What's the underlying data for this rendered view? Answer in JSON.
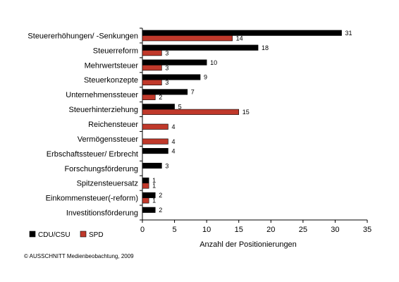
{
  "chart_data": {
    "type": "bar",
    "orientation": "horizontal",
    "categories": [
      "Steuererhöhungen/ -Senkungen",
      "Steuerreform",
      "Mehrwertsteuer",
      "Steuerkonzepte",
      "Unternehmenssteuer",
      "Steuerhinterziehung",
      "Reichensteuer",
      "Vermögenssteuer",
      "Erbschaftssteuer/ Erbrecht",
      "Forschungsförderung",
      "Spitzensteuersatz",
      "Einkommensteuer(-reform)",
      "Investitionsförderung"
    ],
    "series": [
      {
        "name": "CDU/CSU",
        "color": "#000000",
        "values": [
          31,
          18,
          10,
          9,
          7,
          5,
          null,
          null,
          4,
          3,
          1,
          2,
          2
        ]
      },
      {
        "name": "SPD",
        "color": "#c0392b",
        "values": [
          14,
          3,
          3,
          3,
          2,
          15,
          4,
          4,
          null,
          null,
          1,
          1,
          null
        ]
      }
    ],
    "xlabel": "Anzahl der Positionierungen",
    "xlim": [
      0,
      35
    ],
    "xticks": [
      0,
      5,
      10,
      15,
      20,
      25,
      30,
      35
    ],
    "grid": false,
    "legend_position": "bottom-left"
  },
  "footer": "© AUSSCHNITT Medienbeobachtung, 2009"
}
